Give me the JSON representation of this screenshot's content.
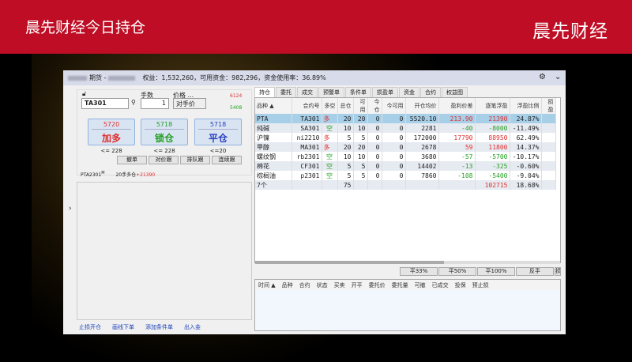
{
  "banner": {
    "title": "晨先财经今日持仓",
    "brand": "晨先财经"
  },
  "window": {
    "account": "期货 -",
    "summary": "权益：1,532,260，可用资金：982,296，资金使用率：36.89%",
    "icons": [
      "gear-icon",
      "minimize-icon"
    ]
  },
  "order": {
    "lots_label": "手数",
    "price_label": "价格 ...",
    "symbol": "TA301",
    "lots": "1",
    "price_type": "对手价",
    "ask": "6124",
    "bid": "5408",
    "buttons": [
      {
        "price": "5720",
        "label": "加多",
        "limit": "<= 228",
        "color": "#e03030"
      },
      {
        "price": "5718",
        "label": "锁仓",
        "limit": "<= 228",
        "color": "#25a025"
      },
      {
        "price": "5718",
        "label": "平仓",
        "limit": "<=20",
        "color": "#2a3fc0"
      }
    ],
    "small_buttons": [
      "撤单",
      "对价跟",
      "排队跟",
      "连续跟"
    ],
    "position_line": {
      "contract": "PTA2301",
      "sup": "M",
      "text": "20手多仓",
      "pnl": "+21390"
    }
  },
  "links": [
    "止损开仓",
    "画线下单",
    "添加条件单",
    "出入金"
  ],
  "tabs": [
    "持仓",
    "委托",
    "成交",
    "预警单",
    "条件单",
    "损盈单",
    "资金",
    "合约",
    "权益图"
  ],
  "positions": {
    "columns": [
      "品种 ▲",
      "合约号",
      "多空",
      "总仓",
      "可用",
      "今仓",
      "今可用",
      "开仓均价",
      "盈利价差",
      "逐笔浮盈",
      "浮盈比例",
      "损盈"
    ],
    "rows": [
      [
        "PTA",
        "TA301",
        "多",
        "20",
        "20",
        "0",
        "0",
        "5520.10",
        "213.90",
        "21390",
        "24.87%",
        ""
      ],
      [
        "纯碱",
        "SA301",
        "空",
        "10",
        "10",
        "0",
        "0",
        "2281",
        "-40",
        "-8000",
        "-11.49%",
        ""
      ],
      [
        "沪镍",
        "ni2210",
        "多",
        "5",
        "5",
        "0",
        "0",
        "172000",
        "17790",
        "88950",
        "62.49%",
        ""
      ],
      [
        "甲醇",
        "MA301",
        "多",
        "20",
        "20",
        "0",
        "0",
        "2678",
        "59",
        "11800",
        "14.37%",
        ""
      ],
      [
        "螺纹钢",
        "rb2301",
        "空",
        "10",
        "10",
        "0",
        "0",
        "3680",
        "-57",
        "-5700",
        "-10.17%",
        ""
      ],
      [
        "棉花",
        "CF301",
        "空",
        "5",
        "5",
        "0",
        "0",
        "14402",
        "-13",
        "-325",
        "-0.60%",
        ""
      ],
      [
        "棕榈油",
        "p2301",
        "空",
        "5",
        "5",
        "0",
        "0",
        "7860",
        "-108",
        "-5400",
        "-9.04%",
        ""
      ],
      [
        "7个",
        "",
        "",
        "75",
        "",
        "",
        "",
        "",
        "",
        "102715",
        "18.68%",
        ""
      ]
    ]
  },
  "close_buttons": [
    "平33%",
    "平50%",
    "平100%",
    "反手",
    "损盈"
  ],
  "orders": {
    "columns": [
      "时间 ▲",
      "品种",
      "合约",
      "状态",
      "买卖",
      "开平",
      "委托价",
      "委托量",
      "可撤",
      "已成交",
      "投保",
      "预止损"
    ]
  },
  "colors": {
    "banner": "#be0d24",
    "profit": "#e03030",
    "loss": "#25a025",
    "selected": "#a8cfe8"
  }
}
